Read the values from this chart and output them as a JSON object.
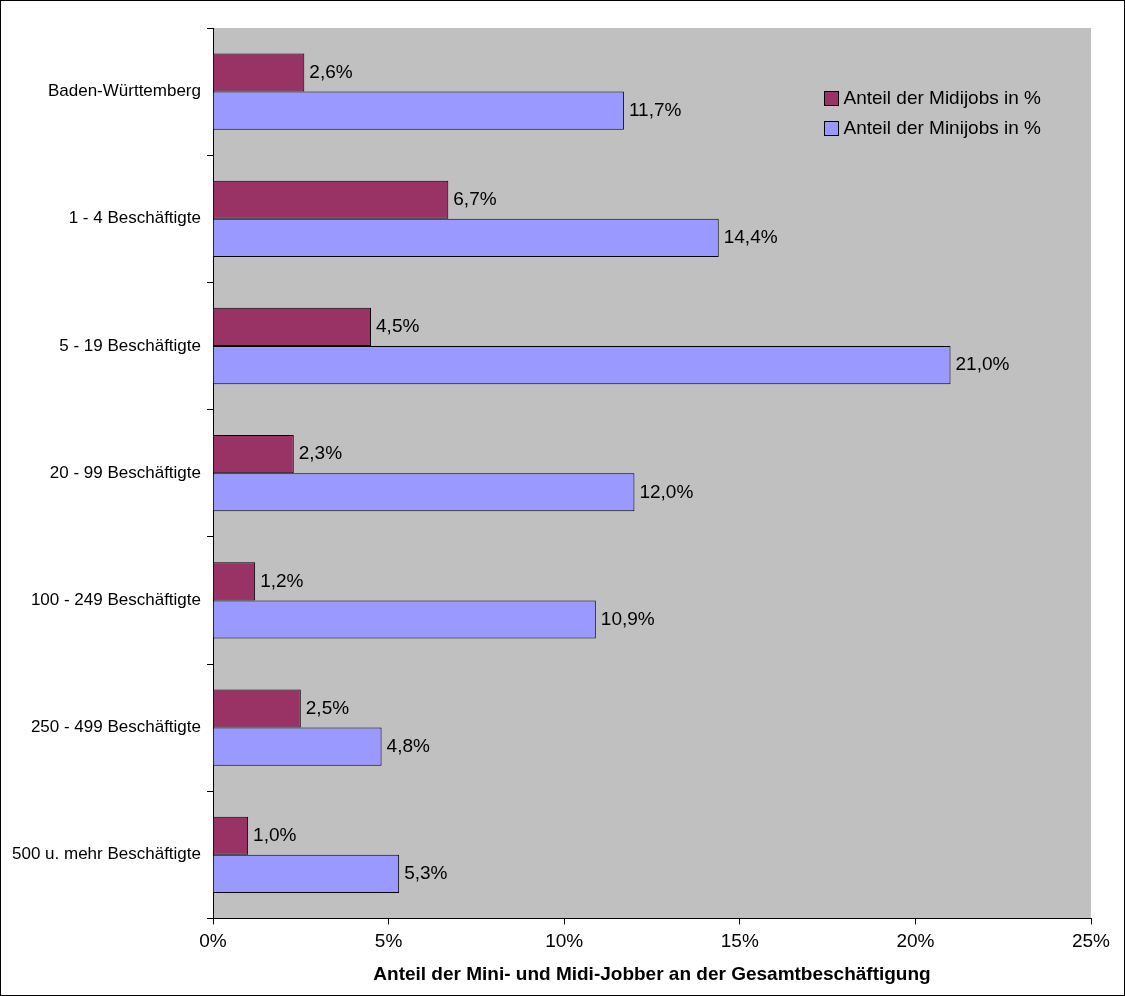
{
  "chart_data": {
    "type": "bar",
    "orientation": "horizontal",
    "xlabel": "Anteil der Mini- und Midi-Jobber an der Gesamtbeschäftigung",
    "categories": [
      "Baden-Württemberg",
      "1 - 4 Beschäftigte",
      "5 - 19 Beschäftigte",
      "20 - 99 Beschäftigte",
      "100 - 249 Beschäftigte",
      "250 - 499 Beschäftigte",
      "500 u. mehr Beschäftigte"
    ],
    "series": [
      {
        "name": "Anteil der Midijobs in %",
        "color": "#993366",
        "values": [
          2.6,
          6.7,
          4.5,
          2.3,
          1.2,
          2.5,
          1.0
        ],
        "value_labels": [
          "2,6%",
          "6,7%",
          "4,5%",
          "2,3%",
          "1,2%",
          "2,5%",
          "1,0%"
        ]
      },
      {
        "name": "Anteil der Minijobs in %",
        "color": "#9999ff",
        "values": [
          11.7,
          14.4,
          21.0,
          12.0,
          10.9,
          4.8,
          5.3
        ],
        "value_labels": [
          "11,7%",
          "14,4%",
          "21,0%",
          "12,0%",
          "10,9%",
          "4,8%",
          "5,3%"
        ]
      }
    ],
    "xlim": [
      0,
      25
    ],
    "xticks": [
      {
        "value": 0,
        "label": "0%"
      },
      {
        "value": 5,
        "label": "5%"
      },
      {
        "value": 10,
        "label": "10%"
      },
      {
        "value": 15,
        "label": "15%"
      },
      {
        "value": 20,
        "label": "20%"
      },
      {
        "value": 25,
        "label": "25%"
      }
    ],
    "grid": false,
    "legend": "top right"
  }
}
